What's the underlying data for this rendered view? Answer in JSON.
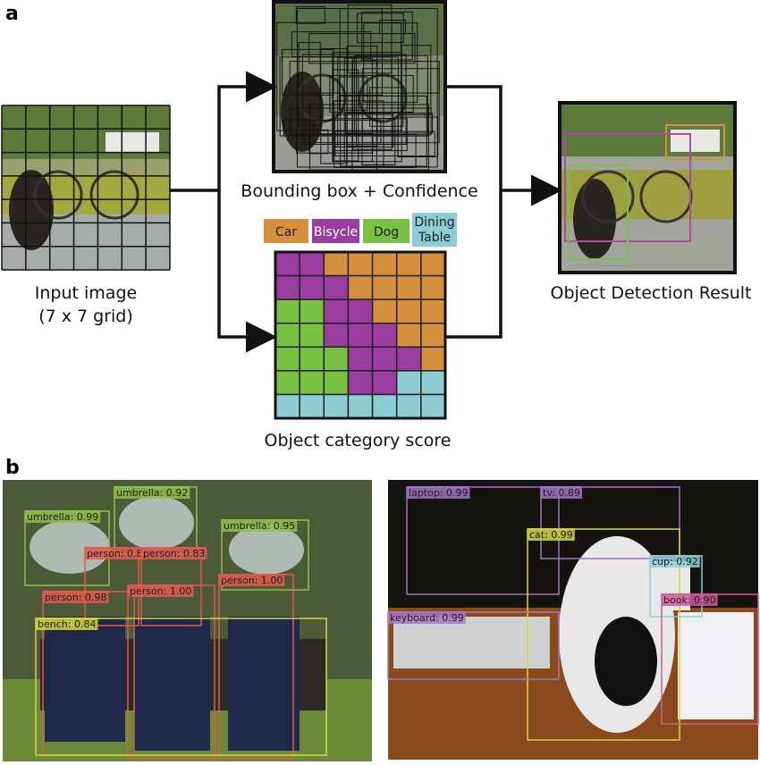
{
  "panel_a": {
    "label": "a",
    "input_caption": [
      "Input image",
      "(7 x 7 grid)"
    ],
    "bbox_caption": "Bounding box + Confidence",
    "legend": [
      {
        "lines": [
          "Car"
        ]
      },
      {
        "lines": [
          "Bisycle"
        ]
      },
      {
        "lines": [
          "Dog"
        ]
      },
      {
        "lines": [
          "Dining",
          "Table"
        ]
      }
    ],
    "category_caption": "Object category score",
    "result_caption": "Object Detection Result"
  },
  "panel_b": {
    "label": "b",
    "left_detections": [
      "umbrella: 0.92",
      "umbrella: 0.99",
      "umbrella: 0.95",
      "person: 0.8",
      "person: 0.83",
      "person: 0.98",
      "person: 1.00",
      "person: 1.00",
      "bench: 0.84"
    ],
    "right_detections": [
      "laptop: 0.99",
      "tv: 0.89",
      "cat: 0.99",
      "cup: 0.92",
      "keyboard: 0.99",
      "book: 0.90"
    ]
  }
}
